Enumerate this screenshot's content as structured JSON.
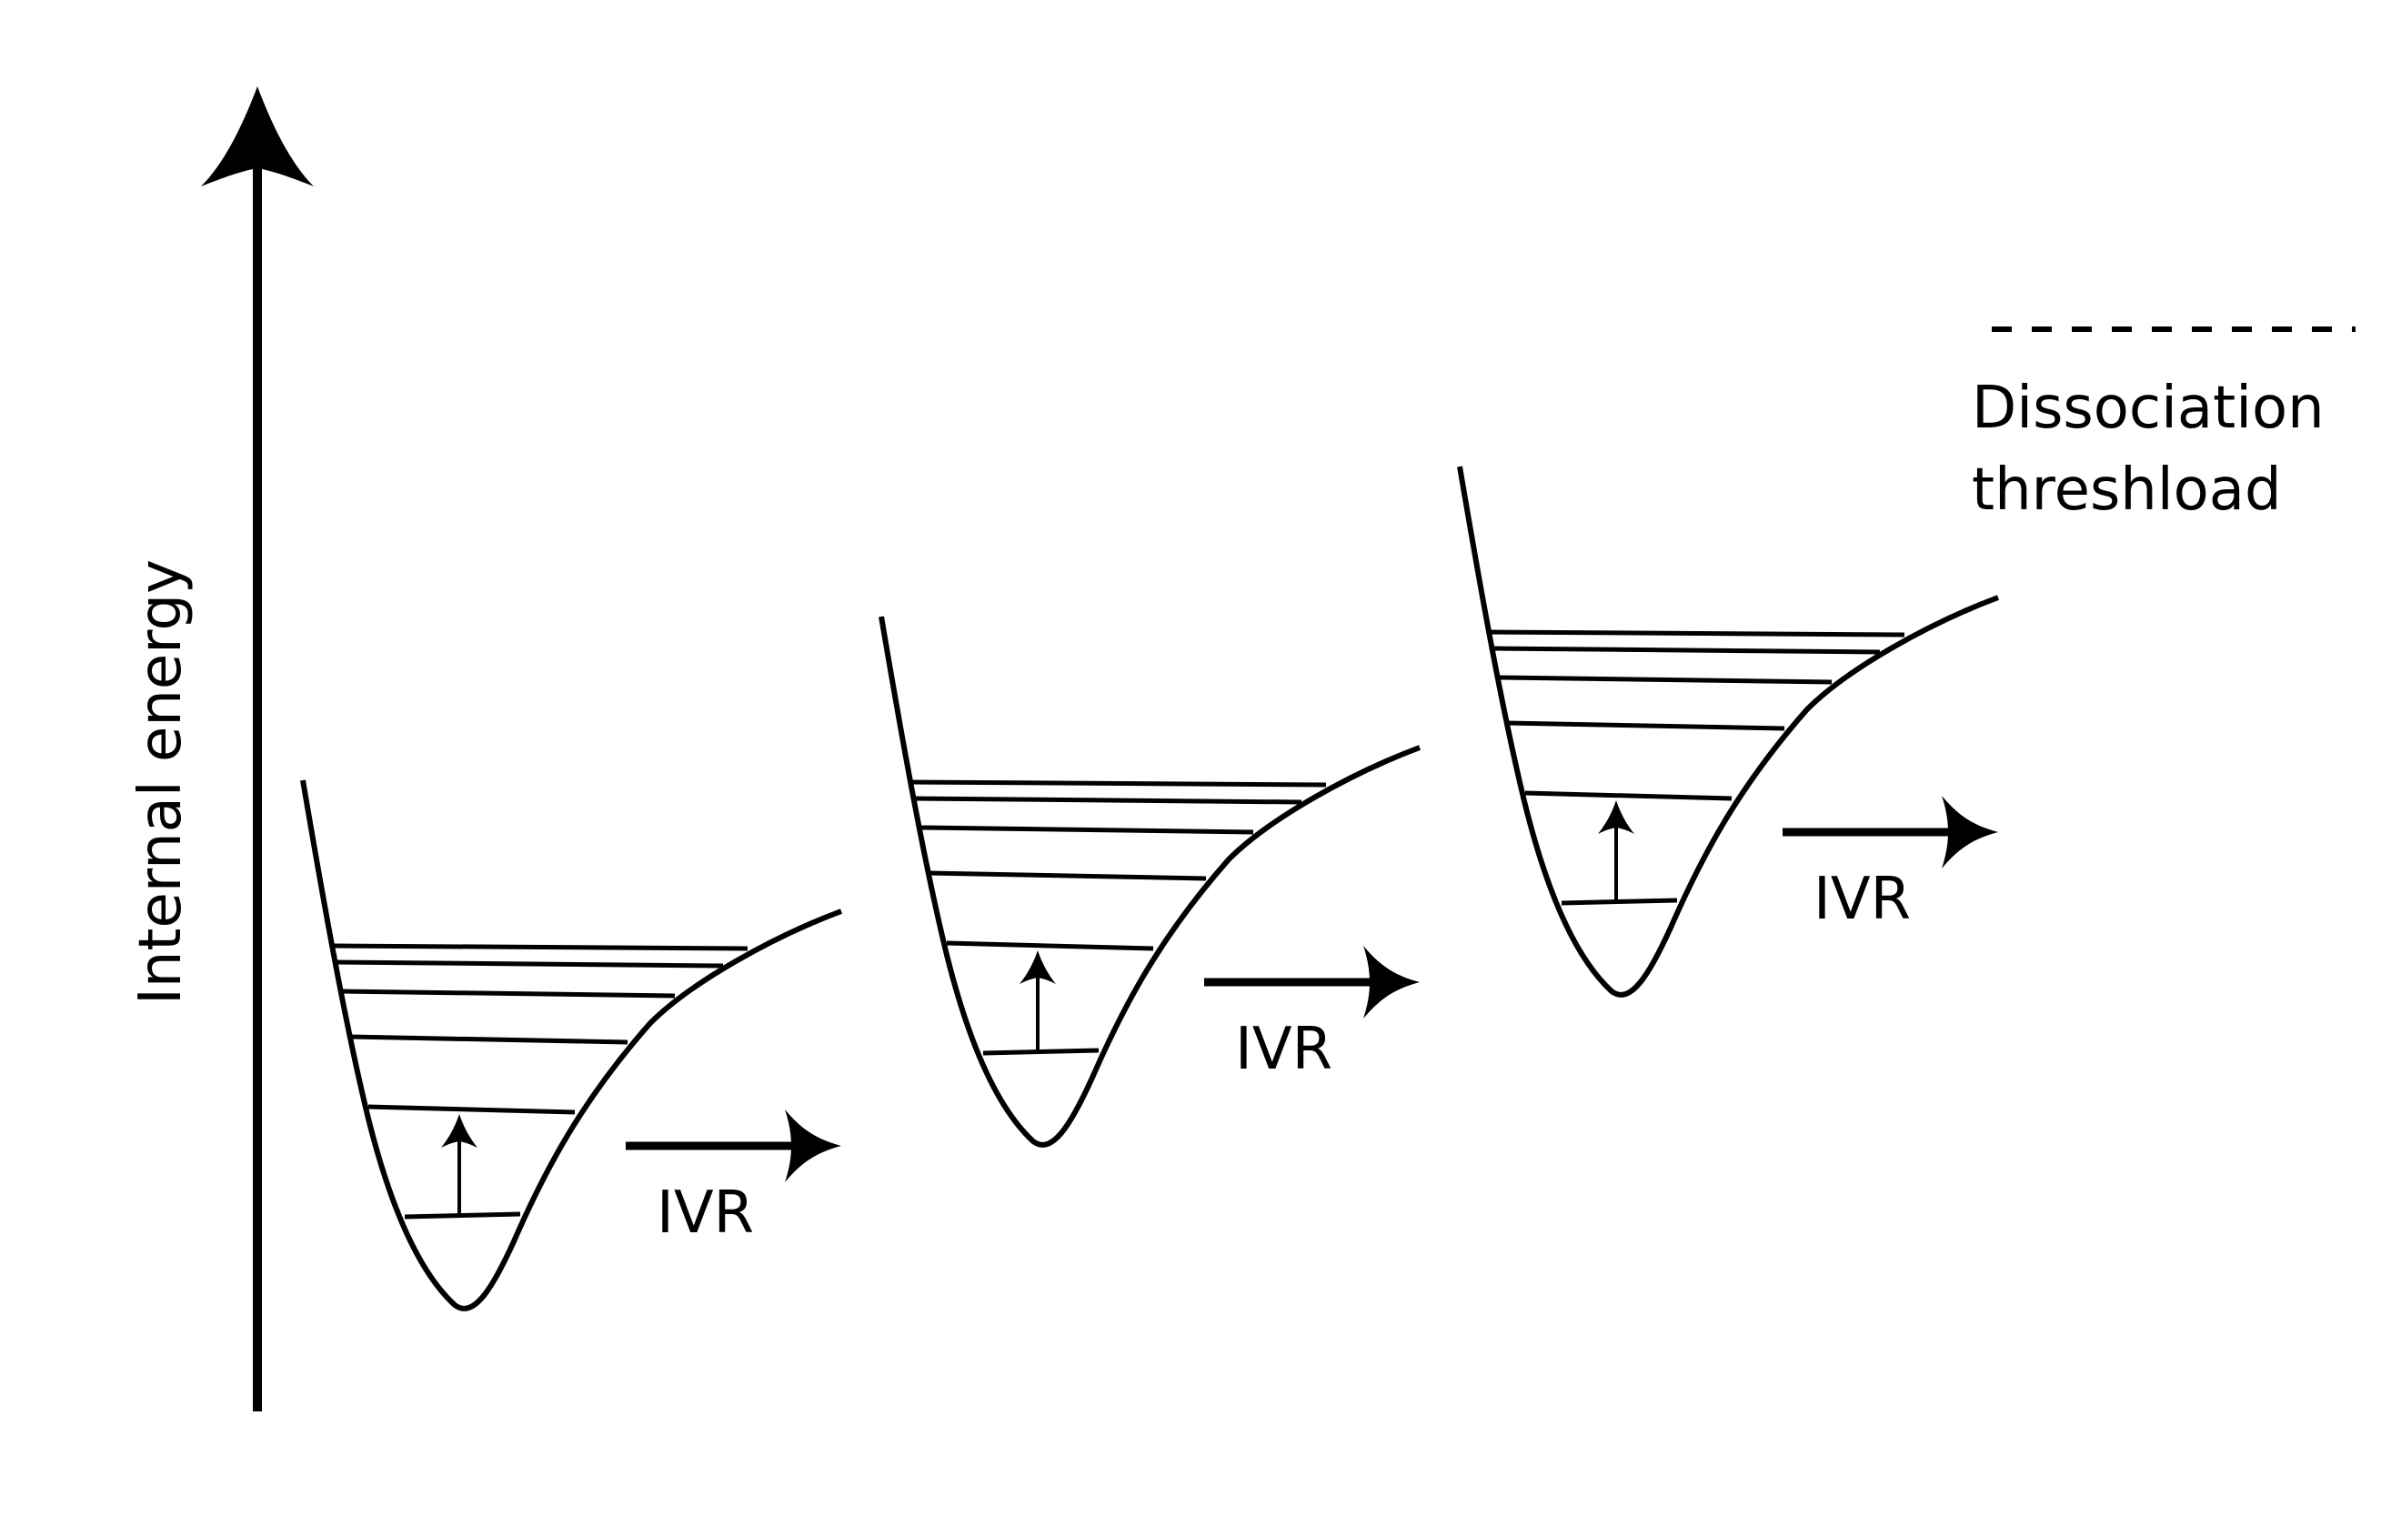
{
  "diagram": {
    "type": "energy-level-diagram",
    "y_axis_label": "Internal energy",
    "legend": {
      "line1": "Dissociation",
      "line2": "threshload",
      "style": "dashed"
    },
    "wells": [
      {
        "name": "well-1",
        "levels": 6,
        "excitation_arrow": true,
        "ivr_label": "IVR"
      },
      {
        "name": "well-2",
        "levels": 6,
        "excitation_arrow": true,
        "ivr_label": "IVR"
      },
      {
        "name": "well-3",
        "levels": 6,
        "excitation_arrow": true,
        "ivr_label": "IVR"
      }
    ],
    "colors": {
      "ink": "#000000",
      "background": "#ffffff"
    }
  }
}
